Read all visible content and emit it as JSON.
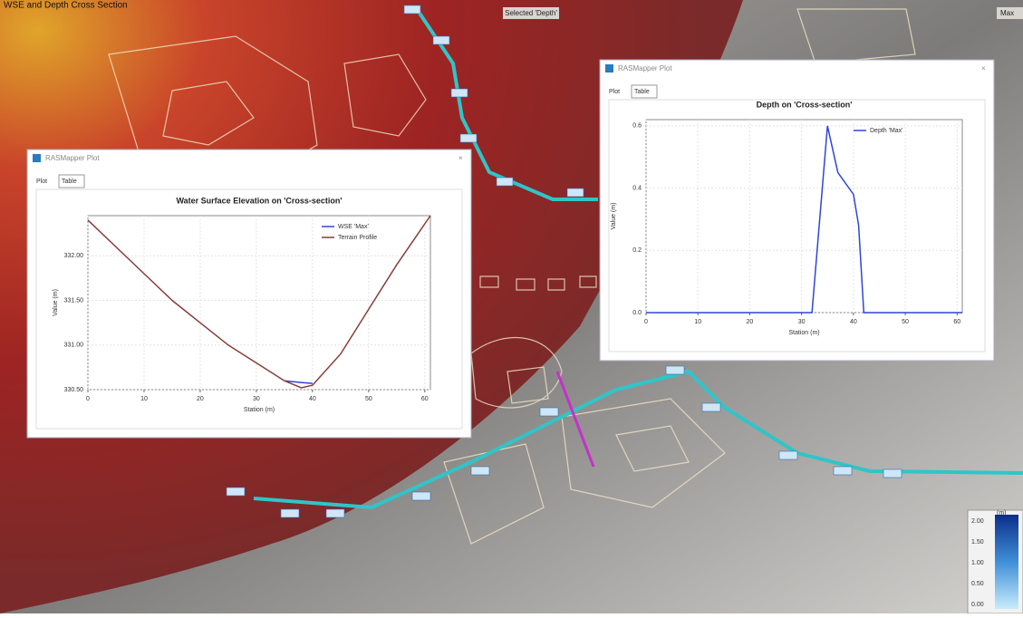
{
  "header": {
    "title": "WSE and Depth Cross Section",
    "selected": "Selected 'Depth'",
    "layer": "Max"
  },
  "windows": [
    {
      "title": "RASMapper Plot",
      "tabs": [
        "Plot",
        "Table"
      ]
    },
    {
      "title": "RASMapper Plot",
      "tabs": [
        "Plot",
        "Table"
      ]
    }
  ],
  "map_legend": {
    "unit": "(m)",
    "ticks": [
      "2.00",
      "1.50",
      "1.00",
      "0.50",
      "0.00"
    ]
  },
  "chart_data": [
    {
      "type": "line",
      "title": "Water Surface Elevation on 'Cross-section'",
      "x_label": "Station (m)",
      "y_label": "Value (m)",
      "x": [
        0,
        5,
        10,
        15,
        20,
        25,
        30,
        35,
        38,
        40,
        45,
        50,
        55,
        61
      ],
      "series": [
        {
          "name": "WSE 'Max'",
          "color": "#2f45d6",
          "values": [
            null,
            null,
            null,
            null,
            null,
            null,
            null,
            330.6,
            330.58,
            330.57,
            null,
            null,
            null,
            null
          ]
        },
        {
          "name": "Terrain Profile",
          "color": "#8a3b3b",
          "values": [
            332.4,
            332.1,
            331.8,
            331.5,
            331.25,
            331.0,
            330.8,
            330.6,
            330.52,
            330.55,
            330.9,
            331.4,
            331.9,
            332.45
          ]
        }
      ],
      "xlim": [
        0,
        61
      ],
      "ylim": [
        330.5,
        332.45
      ],
      "xticks": [
        0,
        10,
        20,
        30,
        40,
        50,
        60
      ],
      "yticks": [
        {
          "value": 330.5,
          "label": "330.50"
        },
        {
          "value": 331,
          "label": "331.00"
        },
        {
          "value": 331.5,
          "label": "331.50"
        },
        {
          "value": 332,
          "label": "332.00"
        }
      ],
      "grid": true,
      "legend": "upper right"
    },
    {
      "type": "line",
      "title": "Depth on 'Cross-section'",
      "x_label": "Station (m)",
      "y_label": "Value (m)",
      "x": [
        0,
        10,
        20,
        30,
        32,
        35,
        37,
        40,
        41,
        42,
        50,
        61
      ],
      "series": [
        {
          "name": "Depth 'Max'",
          "color": "#2f45d6",
          "values": [
            0,
            0,
            0,
            0,
            0,
            0.6,
            0.45,
            0.38,
            0.28,
            0,
            0,
            0
          ]
        }
      ],
      "xlim": [
        0,
        61
      ],
      "ylim": [
        0,
        0.62
      ],
      "xticks": [
        0,
        10,
        20,
        30,
        40,
        50,
        60
      ],
      "yticks": [
        {
          "value": 0,
          "label": "0.0"
        },
        0.2,
        0.4,
        0.6
      ],
      "grid": true,
      "legend": "upper right"
    }
  ]
}
